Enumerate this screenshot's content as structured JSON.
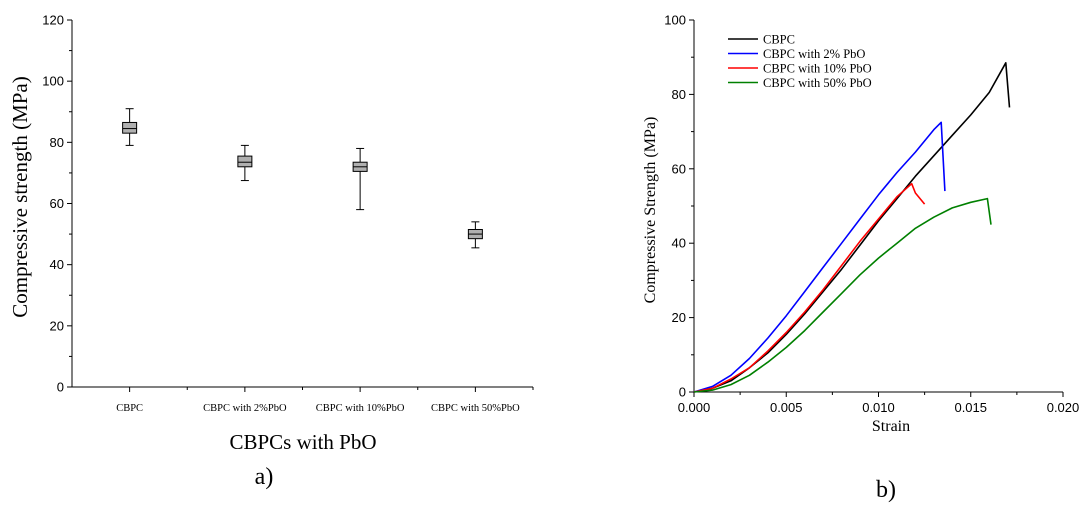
{
  "chart_data": [
    {
      "type": "box",
      "panel_label": "a)",
      "title": "",
      "xlabel": "CBPCs with PbO",
      "ylabel": "Compressive strength (MPa)",
      "ylim": [
        0,
        120
      ],
      "yticks": [
        0,
        20,
        40,
        60,
        80,
        100,
        120
      ],
      "categories": [
        "CBPC",
        "CBPC with 2%PbO",
        "CBPC with 10%PbO",
        "CBPC with 50%PbO"
      ],
      "series": [
        {
          "mean": 84.5,
          "box_low": 83,
          "box_high": 86.5,
          "whisker_low": 79,
          "whisker_high": 91
        },
        {
          "mean": 73.5,
          "box_low": 72,
          "box_high": 75.5,
          "whisker_low": 67.5,
          "whisker_high": 79
        },
        {
          "mean": 72,
          "box_low": 70.5,
          "box_high": 73.5,
          "whisker_low": 58,
          "whisker_high": 78
        },
        {
          "mean": 50,
          "box_low": 48.5,
          "box_high": 51.5,
          "whisker_low": 45.5,
          "whisker_high": 54
        }
      ],
      "box_color": "#b0b0b0",
      "grid": false
    },
    {
      "type": "line",
      "panel_label": "b)",
      "title": "",
      "xlabel": "Strain",
      "ylabel": "Compressive Strength (MPa)",
      "xlim": [
        0,
        0.02
      ],
      "ylim": [
        0,
        100
      ],
      "xticks": [
        "0.000",
        "0.005",
        "0.010",
        "0.015",
        "0.020"
      ],
      "yticks": [
        0,
        20,
        40,
        60,
        80,
        100
      ],
      "legend_position": "top-left",
      "grid": false,
      "series": [
        {
          "name": "CBPC",
          "color": "#000000",
          "x": [
            0,
            0.001,
            0.002,
            0.003,
            0.004,
            0.005,
            0.006,
            0.007,
            0.008,
            0.009,
            0.01,
            0.011,
            0.012,
            0.013,
            0.014,
            0.015,
            0.016,
            0.0169,
            0.0171
          ],
          "y": [
            0,
            1,
            3,
            6.5,
            10.5,
            15.5,
            21,
            27,
            33,
            39.5,
            46,
            52,
            58,
            63.5,
            69,
            74.5,
            80.5,
            88.5,
            76.5
          ]
        },
        {
          "name": "CBPC with 2% PbO",
          "color": "#0000ff",
          "x": [
            0,
            0.001,
            0.002,
            0.003,
            0.004,
            0.005,
            0.006,
            0.007,
            0.008,
            0.009,
            0.01,
            0.011,
            0.012,
            0.013,
            0.0134,
            0.0136
          ],
          "y": [
            0,
            1.5,
            4.5,
            9,
            14.5,
            20.5,
            27,
            33.5,
            40,
            46.5,
            53,
            59,
            64.5,
            70.5,
            72.5,
            54
          ]
        },
        {
          "name": "CBPC with  10% PbO",
          "color": "#ff0000",
          "x": [
            0,
            0.001,
            0.002,
            0.003,
            0.004,
            0.005,
            0.006,
            0.007,
            0.008,
            0.009,
            0.01,
            0.011,
            0.0118,
            0.012,
            0.0125
          ],
          "y": [
            0,
            1,
            3.5,
            6.5,
            11,
            16,
            21.5,
            27.5,
            34,
            40.5,
            46.5,
            52.5,
            56,
            53.5,
            50.5
          ]
        },
        {
          "name": "CBPC with 50% PbO",
          "color": "#008000",
          "x": [
            0,
            0.001,
            0.002,
            0.003,
            0.004,
            0.005,
            0.006,
            0.007,
            0.008,
            0.009,
            0.01,
            0.011,
            0.012,
            0.013,
            0.014,
            0.015,
            0.0159,
            0.0161
          ],
          "y": [
            0,
            0.5,
            2,
            4.5,
            8,
            12,
            16.5,
            21.5,
            26.5,
            31.5,
            36,
            40,
            44,
            47,
            49.5,
            51,
            52,
            45
          ]
        }
      ]
    }
  ]
}
